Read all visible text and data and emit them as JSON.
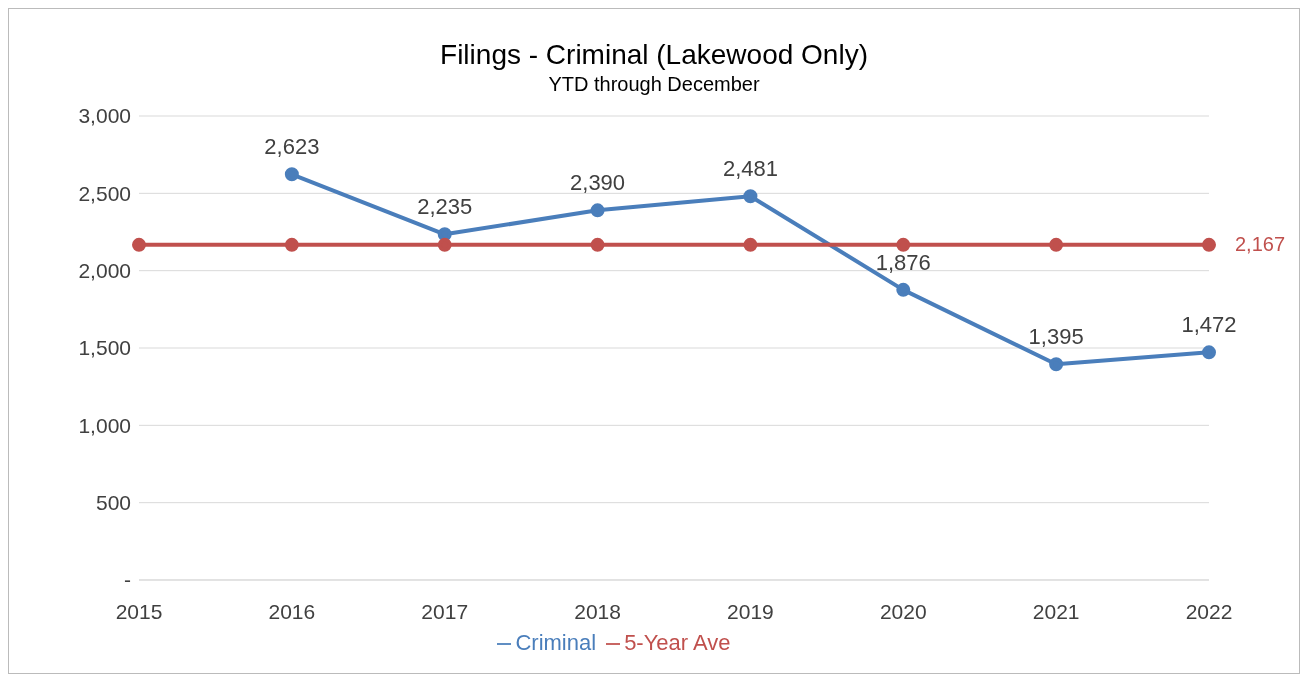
{
  "chart_data": {
    "type": "line",
    "title": "Filings - Criminal (Lakewood Only)",
    "subtitle": "YTD through December",
    "categories": [
      "2015",
      "2016",
      "2017",
      "2018",
      "2019",
      "2020",
      "2021",
      "2022"
    ],
    "series": [
      {
        "name": "Criminal",
        "color": "#4a7ebb",
        "values": [
          null,
          2623,
          2235,
          2390,
          2481,
          1876,
          1395,
          1472
        ],
        "value_labels": [
          null,
          "2,623",
          "2,235",
          "2,390",
          "2,481",
          "1,876",
          "1,395",
          "1,472"
        ]
      },
      {
        "name": "5-Year Ave",
        "color": "#c0504d",
        "values": [
          2167,
          2167,
          2167,
          2167,
          2167,
          2167,
          2167,
          2167
        ],
        "value_labels": [
          null,
          null,
          null,
          null,
          null,
          null,
          null,
          "2,167"
        ]
      }
    ],
    "ylim": [
      0,
      3000
    ],
    "yticks": [
      {
        "value": 0,
        "label": "-"
      },
      500,
      {
        "value": 1000,
        "label": "1,000"
      },
      {
        "value": 1500,
        "label": "1,500"
      },
      {
        "value": 2000,
        "label": "2,000"
      },
      {
        "value": 2500,
        "label": "2,500"
      },
      {
        "value": 3000,
        "label": "3,000"
      }
    ],
    "grid": "y",
    "legend": "bottom",
    "marker": "circle",
    "line_style": "solid"
  }
}
